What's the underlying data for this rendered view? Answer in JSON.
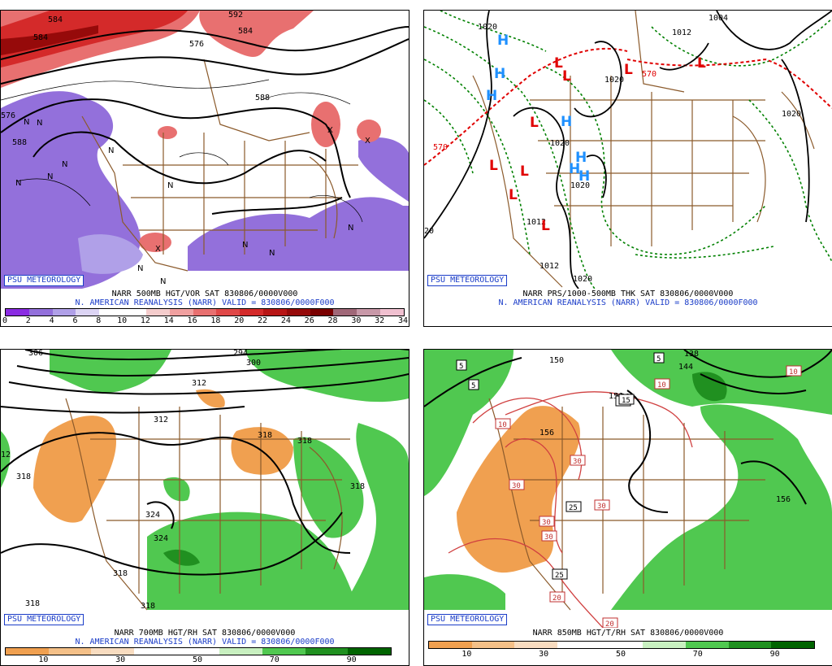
{
  "badge_text": "PSU METEOROLOGY",
  "panels": [
    {
      "id": "tl",
      "title": "NARR 500MB HGT/VOR SAT 830806/0000V000",
      "subtitle": "N. AMERICAN REANALYSIS (NARR) VALID = 830806/0000F000",
      "colorbar": {
        "colors": [
          "#8a2be2",
          "#9370db",
          "#b0a0e8",
          "#dcd4f4",
          "#ffffff",
          "#ffffff",
          "#f4cccc",
          "#f0a0a0",
          "#e87070",
          "#e04848",
          "#d42a2a",
          "#b81616",
          "#960a0a",
          "#7a0000",
          "#a06878",
          "#c898a8",
          "#f0c0d0"
        ],
        "ticks": [
          "0",
          "2",
          "4",
          "6",
          "8",
          "10",
          "12",
          "14",
          "16",
          "18",
          "20",
          "22",
          "24",
          "26",
          "28",
          "30",
          "32",
          "34"
        ]
      },
      "contour_labels": [
        {
          "text": "584",
          "cls": "lbl"
        },
        {
          "text": "584",
          "cls": "lbl"
        },
        {
          "text": "576",
          "cls": "lbl"
        },
        {
          "text": "592",
          "cls": "lbl"
        },
        {
          "text": "584",
          "cls": "lbl"
        },
        {
          "text": "588",
          "cls": "lbl"
        },
        {
          "text": "588",
          "cls": "lbl"
        },
        {
          "text": "576",
          "cls": "lbl"
        }
      ],
      "markers": [
        {
          "text": "N"
        },
        {
          "text": "N"
        },
        {
          "text": "N"
        },
        {
          "text": "N"
        },
        {
          "text": "N"
        },
        {
          "text": "N"
        },
        {
          "text": "N"
        },
        {
          "text": "N"
        },
        {
          "text": "N"
        },
        {
          "text": "N"
        },
        {
          "text": "N"
        },
        {
          "text": "N"
        },
        {
          "text": "X"
        },
        {
          "text": "X"
        },
        {
          "text": "X"
        }
      ]
    },
    {
      "id": "tr",
      "title": "NARR PRS/1000-500MB THK SAT 830806/0000V000",
      "subtitle": "N. AMERICAN REANALYSIS (NARR) VALID = 830806/0000F000",
      "contour_labels": [
        {
          "text": "1020"
        },
        {
          "text": "1004"
        },
        {
          "text": "1012"
        },
        {
          "text": "1020"
        },
        {
          "text": "1020"
        },
        {
          "text": "570"
        },
        {
          "text": "570"
        },
        {
          "text": "1020"
        },
        {
          "text": "1020"
        },
        {
          "text": "1012"
        },
        {
          "text": "1012"
        },
        {
          "text": "1020"
        },
        {
          "text": "20"
        }
      ],
      "highs": [
        "H",
        "H",
        "H",
        "H",
        "H",
        "H",
        "H"
      ],
      "lows": [
        "L",
        "L",
        "L",
        "L",
        "L",
        "L",
        "L",
        "L",
        "L"
      ]
    },
    {
      "id": "bl",
      "title": "NARR 700MB HGT/RH SAT 830806/0000V000",
      "subtitle": "N. AMERICAN REANALYSIS (NARR) VALID = 830806/0000F000",
      "colorbar": {
        "colors": [
          "#f0a050",
          "#f4c088",
          "#f8dcc0",
          "#ffffff",
          "#ffffff",
          "#c8f0c0",
          "#50c850",
          "#209020",
          "#006400"
        ],
        "ticks": [
          "10",
          "30",
          "50",
          "70",
          "90"
        ]
      },
      "contour_labels": [
        {
          "text": "306"
        },
        {
          "text": "294"
        },
        {
          "text": "300"
        },
        {
          "text": "312"
        },
        {
          "text": "312"
        },
        {
          "text": "318"
        },
        {
          "text": "318"
        },
        {
          "text": "318"
        },
        {
          "text": "318"
        },
        {
          "text": "318"
        },
        {
          "text": "324"
        },
        {
          "text": "324"
        },
        {
          "text": "318"
        },
        {
          "text": "318"
        },
        {
          "text": "12"
        }
      ]
    },
    {
      "id": "br",
      "title": "NARR 850MB HGT/T/RH SAT 830806/0000V000",
      "colorbar": {
        "colors": [
          "#f0a050",
          "#f4c088",
          "#f8dcc0",
          "#ffffff",
          "#ffffff",
          "#c8f0c0",
          "#50c850",
          "#209020",
          "#006400"
        ],
        "ticks": [
          "10",
          "30",
          "50",
          "70",
          "90"
        ]
      },
      "contour_labels": [
        {
          "text": "150"
        },
        {
          "text": "138"
        },
        {
          "text": "144"
        },
        {
          "text": "156"
        },
        {
          "text": "156"
        },
        {
          "text": "156"
        },
        {
          "text": "156"
        }
      ],
      "boxed_labels": [
        {
          "text": "5"
        },
        {
          "text": "5"
        },
        {
          "text": "5"
        },
        {
          "text": "10"
        },
        {
          "text": "10"
        },
        {
          "text": "10"
        },
        {
          "text": "15"
        },
        {
          "text": "15"
        },
        {
          "text": "30"
        },
        {
          "text": "30"
        },
        {
          "text": "30"
        },
        {
          "text": "30"
        },
        {
          "text": "25"
        },
        {
          "text": "30"
        },
        {
          "text": "25"
        },
        {
          "text": "20"
        },
        {
          "text": "20"
        }
      ]
    }
  ]
}
